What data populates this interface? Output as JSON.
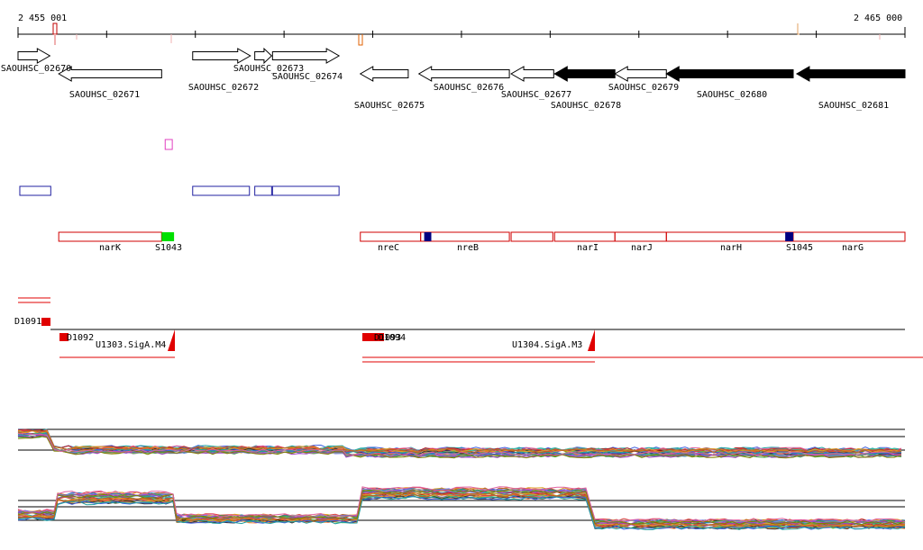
{
  "ruler": {
    "start_label": "2 455 001",
    "end_label": "2 465 000",
    "start": 2455001,
    "end": 2465000
  },
  "colors": {
    "gene_outline": "#000000",
    "gene_fill": "#ffffff",
    "gene_fill_solid": "#000000",
    "operon": "#d00000",
    "blue_box": "#2020a0",
    "green_mark": "#00e000",
    "navy_mark": "#000080",
    "pink_box": "#e040c0",
    "sigma": "#e00000"
  },
  "genes": [
    {
      "label": "SAOUHSC_02670",
      "from": 2455001,
      "to": 2455360,
      "strand": "+",
      "row": 0,
      "solid": false
    },
    {
      "label": "SAOUHSC_02671",
      "from": 2455460,
      "to": 2456620,
      "strand": "-",
      "row": 1,
      "solid": false
    },
    {
      "label": "SAOUHSC_02672",
      "from": 2456970,
      "to": 2457620,
      "strand": "+",
      "row": 0,
      "solid": false
    },
    {
      "label": "SAOUHSC_02673",
      "from": 2457670,
      "to": 2457860,
      "strand": "+",
      "row": 0,
      "solid": false
    },
    {
      "label": "SAOUHSC_02674",
      "from": 2457870,
      "to": 2458620,
      "strand": "+",
      "row": 0,
      "solid": false
    },
    {
      "label": "SAOUHSC_02675",
      "from": 2458860,
      "to": 2459400,
      "strand": "-",
      "row": 1,
      "solid": false
    },
    {
      "label": "SAOUHSC_02676",
      "from": 2459520,
      "to": 2460540,
      "strand": "-",
      "row": 1,
      "solid": false
    },
    {
      "label": "SAOUHSC_02677",
      "from": 2460560,
      "to": 2461040,
      "strand": "-",
      "row": 1,
      "solid": false
    },
    {
      "label": "SAOUHSC_02678",
      "from": 2461050,
      "to": 2461730,
      "strand": "-",
      "row": 1,
      "solid": true
    },
    {
      "label": "SAOUHSC_02679",
      "from": 2461730,
      "to": 2462310,
      "strand": "-",
      "row": 1,
      "solid": false
    },
    {
      "label": "SAOUHSC_02680",
      "from": 2462310,
      "to": 2463740,
      "strand": "-",
      "row": 1,
      "solid": true
    },
    {
      "label": "SAOUHSC_02681",
      "from": 2463780,
      "to": 2465000,
      "strand": "-",
      "row": 1,
      "solid": true
    }
  ],
  "operon_segments": [
    {
      "label": "narK",
      "from": 2455460,
      "to": 2456620
    },
    {
      "label": "nreC",
      "from": 2458860,
      "to": 2459540
    },
    {
      "label": "nreB",
      "from": 2459540,
      "to": 2460540
    },
    {
      "label": "",
      "from": 2460560,
      "to": 2461030
    },
    {
      "label": "narI",
      "from": 2461050,
      "to": 2461730
    },
    {
      "label": "narJ",
      "from": 2461730,
      "to": 2462310
    },
    {
      "label": "narH",
      "from": 2462310,
      "to": 2463740
    },
    {
      "label": "narG",
      "from": 2463740,
      "to": 2465000
    }
  ],
  "operon_marks": [
    {
      "label": "S1043",
      "from": 2456620,
      "to": 2456760,
      "color": "#00e000"
    },
    {
      "label": "",
      "from": 2459580,
      "to": 2459660,
      "color": "#000080"
    },
    {
      "label": "S1045",
      "from": 2463650,
      "to": 2463740,
      "color": "#000080"
    }
  ],
  "blue_boxes": [
    {
      "from": 2455021,
      "to": 2455370
    },
    {
      "from": 2456970,
      "to": 2457610
    },
    {
      "from": 2457670,
      "to": 2457860
    },
    {
      "from": 2457870,
      "to": 2458620
    }
  ],
  "pink_box": {
    "from": 2456660,
    "to": 2456740
  },
  "transcripts": [
    {
      "label": "D1091",
      "from": 2455280,
      "to": 2455360
    },
    {
      "label": "D1092",
      "from": 2455460,
      "to": 2455560
    },
    {
      "label": "U1303.SigA.M4",
      "from": 2456660,
      "to": 2456760
    },
    {
      "label": "D1093",
      "from": 2458840,
      "to": 2458960
    },
    {
      "label": "D1094",
      "from": 2458960,
      "to": 2459080
    },
    {
      "label": "U1304.SigA.M3",
      "from": 2461360,
      "to": 2461440
    }
  ]
}
